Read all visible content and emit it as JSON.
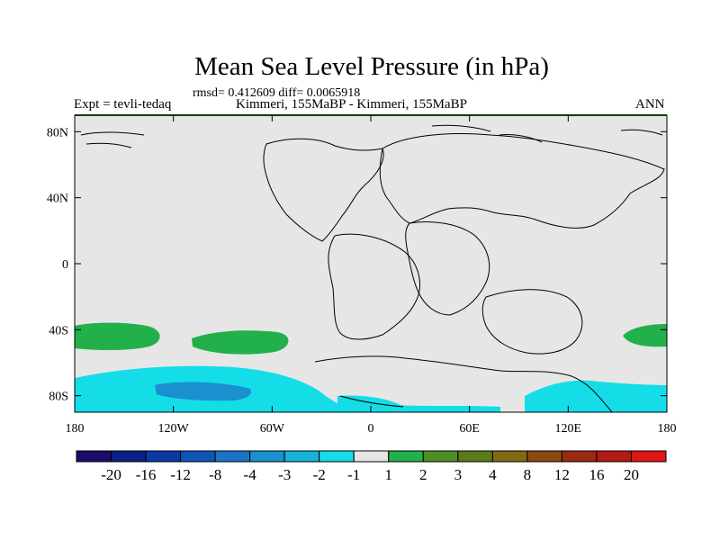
{
  "chart_data": {
    "type": "heatmap",
    "title": "Mean Sea Level Pressure (in hPa)",
    "stats_label": "rmsd= 0.412609 diff= 0.0065918",
    "experiment_label": "Expt = tevli-tedaq",
    "subtitle": "Kimmeri, 155MaBP - Kimmeri, 155MaBP",
    "period_label": "ANN",
    "x_ticks": [
      "180",
      "120W",
      "60W",
      "0",
      "60E",
      "120E",
      "180"
    ],
    "x_tick_values": [
      -180,
      -120,
      -60,
      0,
      60,
      120,
      180
    ],
    "y_ticks": [
      "80N",
      "40N",
      "0",
      "40S",
      "80S"
    ],
    "y_tick_values": [
      80,
      40,
      0,
      -40,
      -80
    ],
    "xlim": [
      -180,
      180
    ],
    "ylim": [
      -90,
      90
    ],
    "colorbar_labels": [
      "-20",
      "-16",
      "-12",
      "-8",
      "-4",
      "-3",
      "-2",
      "-1",
      "1",
      "2",
      "3",
      "4",
      "8",
      "12",
      "16",
      "20"
    ],
    "colorbar_colors": [
      "#1b0b6b",
      "#0c1f86",
      "#0b3aa6",
      "#0e56b6",
      "#1b73c6",
      "#1a90cf",
      "#17b2da",
      "#14dde7",
      "#e6e6e6",
      "#22b04a",
      "#4c8f24",
      "#5c7a18",
      "#806a12",
      "#8a4a10",
      "#9c2a10",
      "#b41a14",
      "#e01616"
    ],
    "anomaly_regions": [
      {
        "label": "2",
        "color": "#22b04a",
        "description": "positive anomaly near 40S-45S, 180-140W"
      },
      {
        "label": "2",
        "color": "#22b04a",
        "description": "positive anomaly near 40S-50S, 110W-50W"
      },
      {
        "label": "2",
        "color": "#22b04a",
        "description": "positive anomaly near 35S-45S, 150E-180"
      },
      {
        "label": "-2",
        "color": "#14dde7",
        "description": "negative anomaly band south of 65S"
      },
      {
        "label": "-3",
        "color": "#1a90cf",
        "description": "stronger negative anomaly near 75S, 130W-70W"
      }
    ]
  }
}
